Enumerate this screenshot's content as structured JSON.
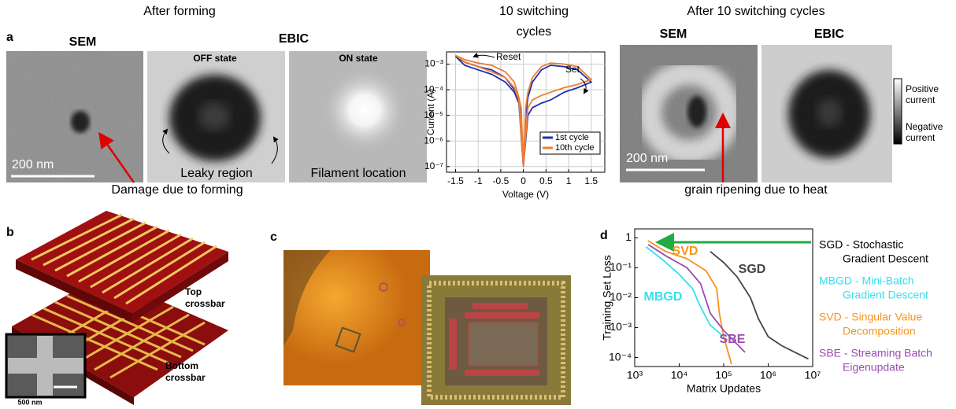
{
  "panel_a": {
    "label": "a",
    "title": "After forming",
    "sem": "SEM",
    "ebic": "EBIC",
    "off_state": "OFF state",
    "on_state": "ON state",
    "scale": "200 nm",
    "leaky": "Leaky region",
    "filament": "Filament location",
    "damage": "Damage due to forming"
  },
  "panel_a_right": {
    "title": "After 10 switching cycles",
    "sem": "SEM",
    "ebic": "EBIC",
    "scale": "200 nm",
    "grain": "grain ripening due to heat",
    "positive": [
      "Positive",
      "current"
    ],
    "negative": [
      "Negative",
      "current"
    ]
  },
  "panel_b": {
    "label": "b",
    "top": [
      "Top",
      "crossbar"
    ],
    "bottom": [
      "Bottom",
      "crossbar"
    ],
    "scale": "500 nm"
  },
  "panel_c": {
    "label": "c"
  },
  "panel_d": {
    "label": "d"
  },
  "chart_data": [
    {
      "type": "line",
      "title": [
        "10 switching",
        "cycles"
      ],
      "x_label": "Voltage (V)",
      "y_label": "Current (A)",
      "log_y": true,
      "grid": true,
      "legend": "lower right",
      "annotations": [
        "Reset",
        "Set"
      ],
      "xlim": [
        -1.7,
        1.8
      ],
      "xticks": [
        -1.5,
        -1,
        -0.5,
        0,
        0.5,
        1,
        1.5
      ],
      "ylim": [
        6e-08,
        0.003
      ],
      "yticks": [
        {
          "value": 1e-07,
          "label": "10⁻⁷"
        },
        {
          "value": 1e-06,
          "label": "10⁻⁶"
        },
        {
          "value": 1e-05,
          "label": "10⁻⁵"
        },
        {
          "value": 0.0001,
          "label": "10⁻⁴"
        },
        {
          "value": 0.001,
          "label": "10⁻³"
        }
      ],
      "series": [
        {
          "name": "1st cycle",
          "color": "#1f2fb0",
          "x": [
            0,
            0.1,
            0.2,
            0.4,
            0.6,
            0.9,
            1.2,
            1.5,
            1.2,
            0.9,
            0.6,
            0.4,
            0.2,
            0.1,
            0.05,
            0,
            -0.05,
            -0.1,
            -0.2,
            -0.4,
            -0.7,
            -1,
            -1.3,
            -1.5,
            -1.3,
            -1,
            -0.7,
            -0.4,
            -0.2,
            -0.1,
            0
          ],
          "values": [
            1e-07,
            1e-05,
            2e-05,
            3e-05,
            4e-05,
            8e-05,
            0.00012,
            0.0002,
            0.0006,
            0.0008,
            0.0009,
            0.0006,
            0.0002,
            5e-05,
            1e-05,
            1e-07,
            1e-05,
            3e-05,
            0.0001,
            0.0003,
            0.0006,
            0.0008,
            0.0012,
            0.002,
            0.0009,
            0.0006,
            0.0004,
            0.0002,
            8e-05,
            3e-05,
            1e-07
          ]
        },
        {
          "name": "10th cycle",
          "color": "#ed7d31",
          "x": [
            0,
            0.1,
            0.2,
            0.4,
            0.6,
            0.9,
            1.2,
            1.5,
            1.2,
            0.9,
            0.6,
            0.4,
            0.2,
            0.1,
            0.05,
            0,
            -0.05,
            -0.1,
            -0.2,
            -0.4,
            -0.7,
            -1,
            -1.3,
            -1.5,
            -1.3,
            -1,
            -0.7,
            -0.4,
            -0.2,
            -0.1,
            0
          ],
          "values": [
            1e-07,
            2e-05,
            4e-05,
            6e-05,
            8e-05,
            0.00012,
            0.00016,
            0.00025,
            0.0008,
            0.001,
            0.0011,
            0.0008,
            0.0003,
            8e-05,
            2e-05,
            1e-07,
            2e-05,
            5e-05,
            0.0002,
            0.0005,
            0.0009,
            0.0011,
            0.0015,
            0.0022,
            0.0012,
            0.0008,
            0.0005,
            0.0003,
            0.00012,
            4e-05,
            1e-07
          ]
        }
      ]
    },
    {
      "type": "line",
      "x_label": "Matrix Updates",
      "y_label": "Training Set Loss",
      "log_x": true,
      "log_y": true,
      "grid": false,
      "annotations": [
        "SGD",
        "SVD",
        "MBGD",
        "SBE"
      ],
      "xlim": [
        1000,
        10000000
      ],
      "xticks": [
        {
          "value": 1000,
          "label": "10³"
        },
        {
          "value": 10000,
          "label": "10⁴"
        },
        {
          "value": 100000,
          "label": "10⁵"
        },
        {
          "value": 1000000,
          "label": "10⁶"
        },
        {
          "value": 10000000,
          "label": "10⁷"
        }
      ],
      "ylim": [
        5e-05,
        2
      ],
      "yticks": [
        {
          "value": 0.0001,
          "label": "10⁻⁴"
        },
        {
          "value": 0.001,
          "label": "10⁻³"
        },
        {
          "value": 0.01,
          "label": "10⁻²"
        },
        {
          "value": 0.1,
          "label": "10⁻¹"
        },
        1
      ],
      "descriptions": [
        [
          "SGD - Stochastic",
          "Gradient Descent"
        ],
        [
          "MBGD - Mini-Batch",
          "Gradient Descent"
        ],
        [
          "SVD - Singular Value",
          "Decomposition"
        ],
        [
          "SBE - Streaming Batch",
          "Eigenupdate"
        ]
      ],
      "series": [
        {
          "name": "SGD",
          "color": "#444444",
          "x": [
            50000,
            100000,
            200000,
            400000,
            600000,
            1000000,
            2000000,
            4000000,
            8000000
          ],
          "values": [
            0.35,
            0.15,
            0.05,
            0.01,
            0.002,
            0.0005,
            0.00025,
            0.00015,
            9e-05
          ]
        },
        {
          "name": "MBGD",
          "color": "#33e0ee",
          "x": [
            1800,
            4000,
            10000,
            20000,
            30000,
            50000,
            100000
          ],
          "values": [
            0.5,
            0.2,
            0.06,
            0.02,
            0.005,
            0.0012,
            0.0005
          ]
        },
        {
          "name": "SVD",
          "color": "#f7941d",
          "x": [
            2000,
            5000,
            15000,
            40000,
            70000,
            80000,
            100000,
            150000
          ],
          "values": [
            0.8,
            0.35,
            0.2,
            0.08,
            0.02,
            0.003,
            0.0005,
            6e-05
          ]
        },
        {
          "name": "SBE",
          "color": "#9b4bb0",
          "x": [
            2000,
            5000,
            15000,
            30000,
            50000,
            100000,
            300000
          ],
          "values": [
            0.6,
            0.25,
            0.1,
            0.03,
            0.003,
            0.0008,
            0.00015
          ]
        }
      ]
    }
  ]
}
